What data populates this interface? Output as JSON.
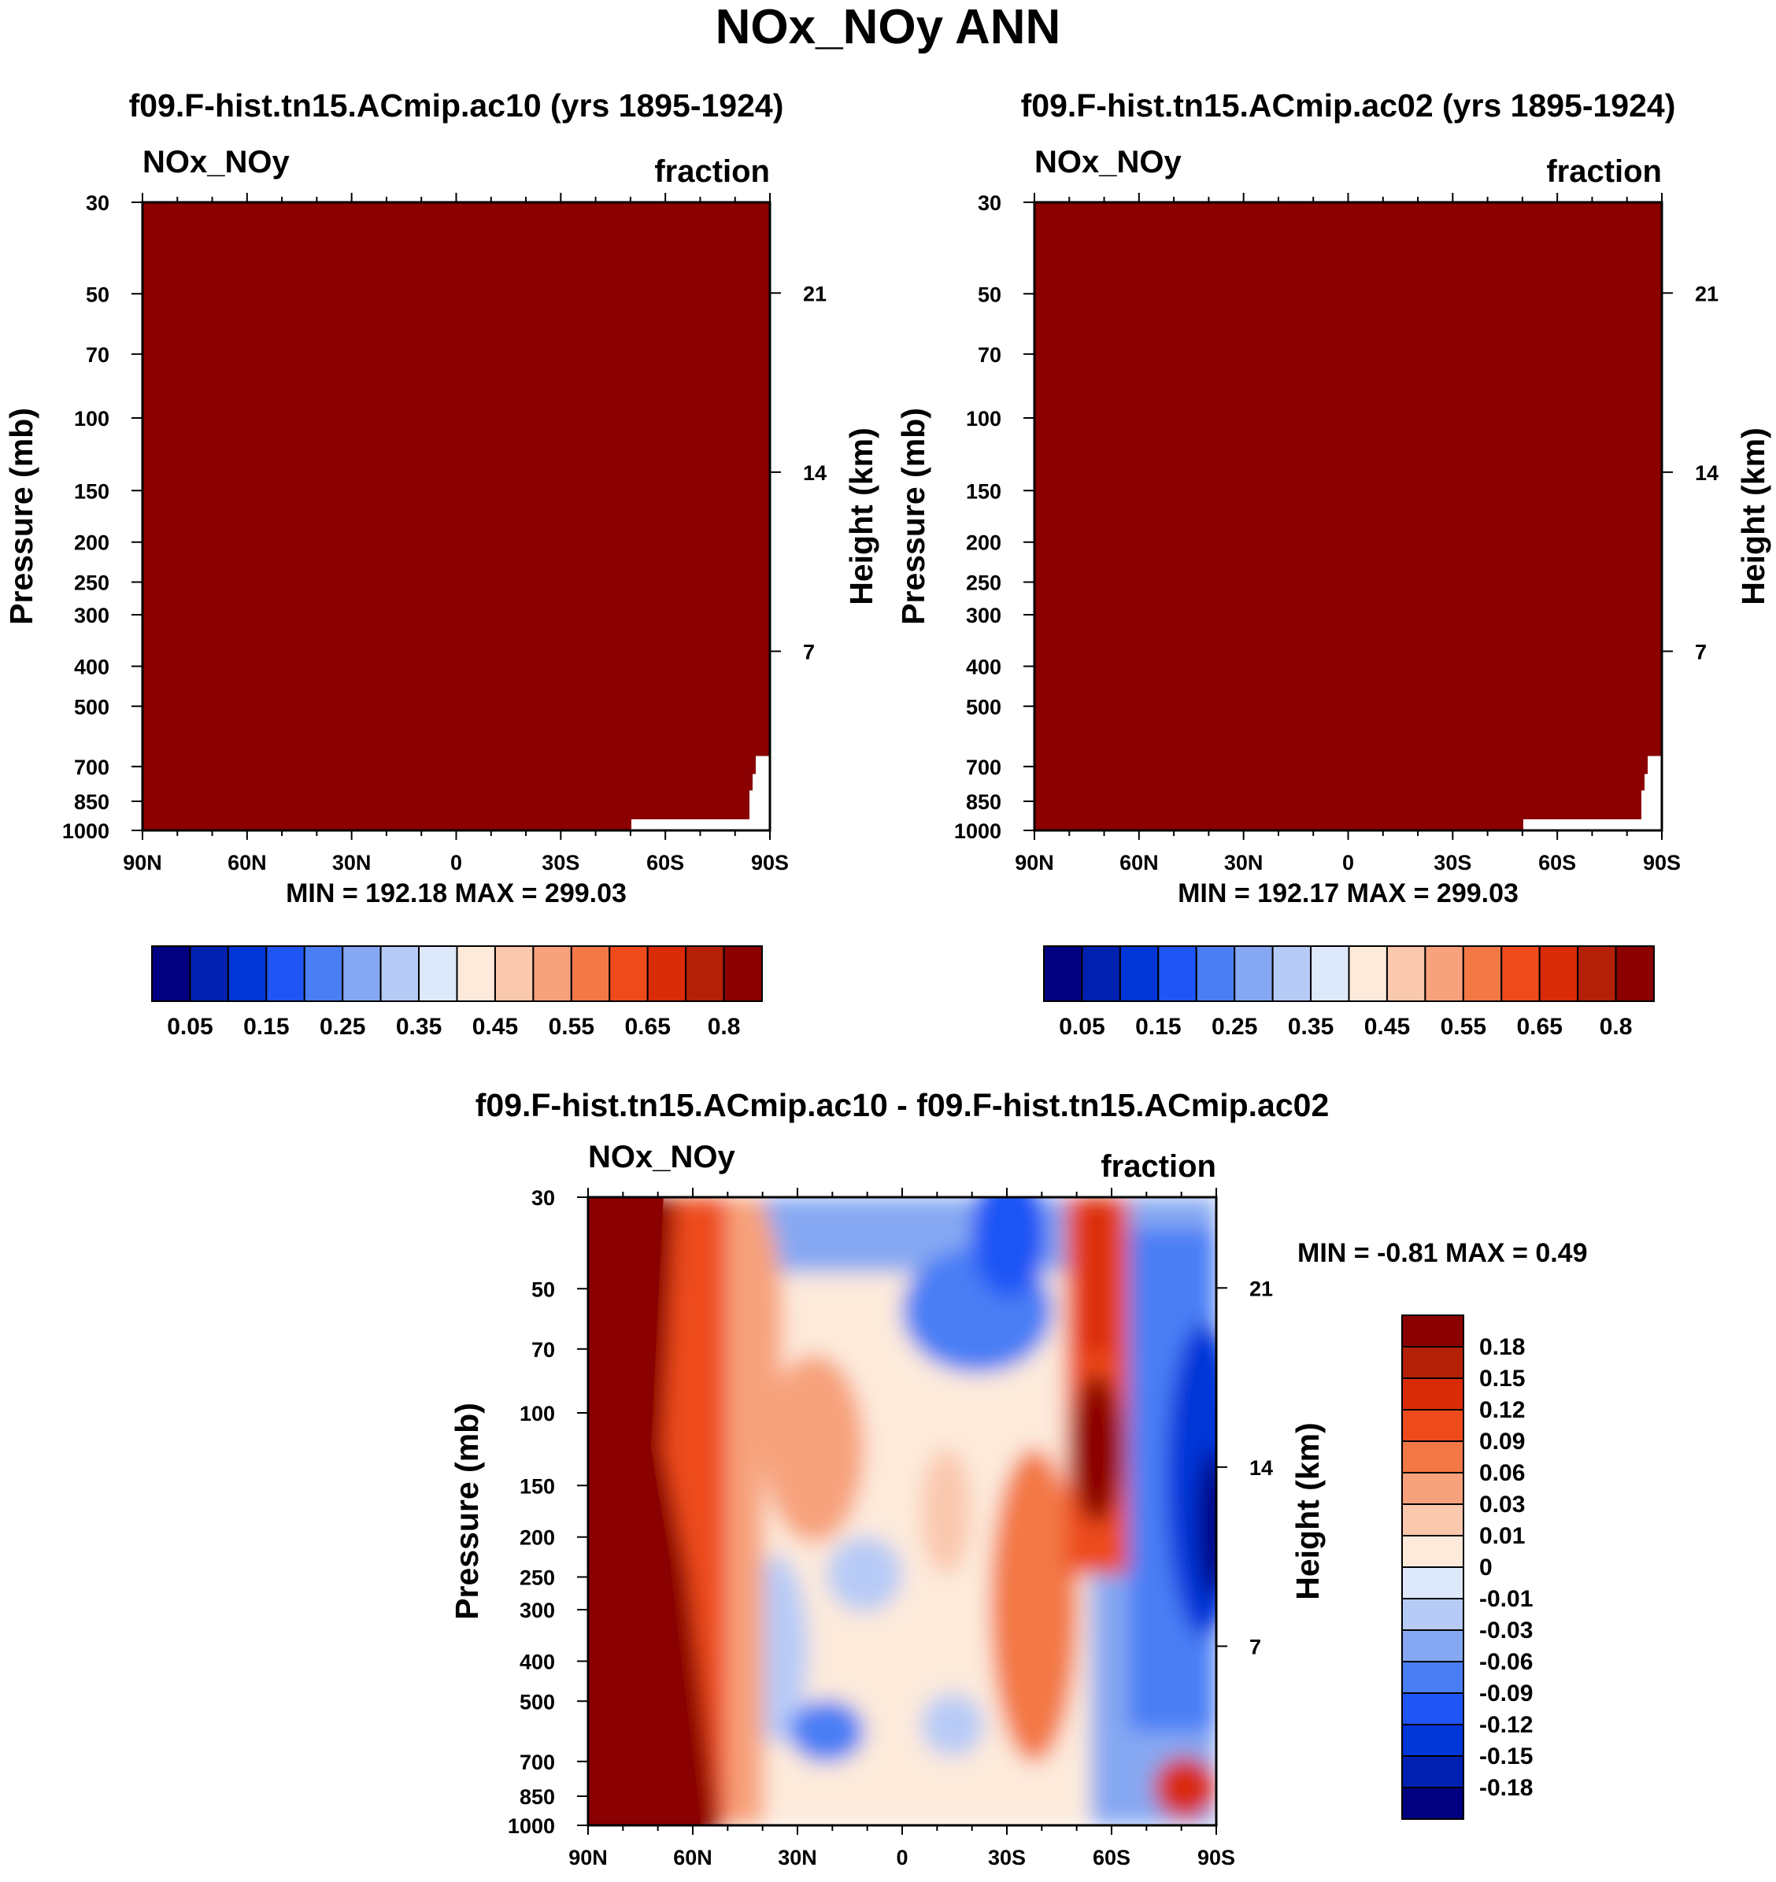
{
  "title": "NOx_NOy ANN",
  "colors": {
    "panel_fill": "#8b0000",
    "frame": "#000000",
    "levels_abs": [
      "#000080",
      "#0020b0",
      "#0035d8",
      "#1f55f5",
      "#4a7ef5",
      "#86a8f2",
      "#b7cbf7",
      "#dde9fb",
      "#fdeadb",
      "#fac8ad",
      "#f7a27c",
      "#f37845",
      "#ee4b1c",
      "#d92b08",
      "#b22107",
      "#8b0000"
    ],
    "levels_diff": [
      "#000080",
      "#0020b0",
      "#0035d8",
      "#1f55f5",
      "#4a7ef5",
      "#86a8f2",
      "#b7cbf7",
      "#dde9fb",
      "#fdeadb",
      "#fac8ad",
      "#f7a27c",
      "#f37845",
      "#ee4b1c",
      "#d92b08",
      "#b22107",
      "#8b0000"
    ]
  },
  "chart_data": [
    {
      "type": "heatmap",
      "title": "f09.F-hist.tn15.ACmip.ac10 (yrs 1895-1924)",
      "left_label": "NOx_NOy",
      "right_label": "fraction",
      "xlabel": "",
      "ylabel": "Pressure (mb)",
      "y2label": "Height (km)",
      "x_ticks": [
        "90N",
        "60N",
        "30N",
        "0",
        "30S",
        "60S",
        "90S"
      ],
      "y_ticks": [
        30,
        50,
        70,
        100,
        150,
        200,
        250,
        300,
        400,
        500,
        700,
        850,
        1000
      ],
      "y2_ticks": [
        21,
        14,
        7
      ],
      "ylim": [
        1000,
        30
      ],
      "stats": "MIN = 192.18  MAX = 299.03",
      "colorbar_labels": [
        "0.05",
        "0.15",
        "0.25",
        "0.35",
        "0.45",
        "0.55",
        "0.65",
        "0.8"
      ],
      "field": "nearly uniform >= 0.8 everywhere"
    },
    {
      "type": "heatmap",
      "title": "f09.F-hist.tn15.ACmip.ac02 (yrs 1895-1924)",
      "left_label": "NOx_NOy",
      "right_label": "fraction",
      "xlabel": "",
      "ylabel": "Pressure (mb)",
      "y2label": "Height (km)",
      "x_ticks": [
        "90N",
        "60N",
        "30N",
        "0",
        "30S",
        "60S",
        "90S"
      ],
      "y_ticks": [
        30,
        50,
        70,
        100,
        150,
        200,
        250,
        300,
        400,
        500,
        700,
        850,
        1000
      ],
      "y2_ticks": [
        21,
        14,
        7
      ],
      "ylim": [
        1000,
        30
      ],
      "stats": "MIN = 192.17  MAX = 299.03",
      "colorbar_labels": [
        "0.05",
        "0.15",
        "0.25",
        "0.35",
        "0.45",
        "0.55",
        "0.65",
        "0.8"
      ],
      "field": "nearly uniform >= 0.8 everywhere"
    },
    {
      "type": "heatmap",
      "title": "f09.F-hist.tn15.ACmip.ac10 - f09.F-hist.tn15.ACmip.ac02",
      "left_label": "NOx_NOy",
      "right_label": "fraction",
      "xlabel": "",
      "ylabel": "Pressure (mb)",
      "y2label": "Height (km)",
      "x_ticks": [
        "90N",
        "60N",
        "30N",
        "0",
        "30S",
        "60S",
        "90S"
      ],
      "y_ticks": [
        30,
        50,
        70,
        100,
        150,
        200,
        250,
        300,
        400,
        500,
        700,
        850,
        1000
      ],
      "y2_ticks": [
        21,
        14,
        7
      ],
      "ylim": [
        1000,
        30
      ],
      "stats": "MIN =  -0.81  MAX =   0.49",
      "colorbar_labels": [
        "0.18",
        "0.15",
        "0.12",
        "0.09",
        "0.06",
        "0.03",
        "0.01",
        "0",
        "-0.01",
        "-0.03",
        "-0.06",
        "-0.09",
        "-0.12",
        "-0.15",
        "-0.18"
      ],
      "field": "difference field, red at high northern latitudes, blue in southern stratosphere"
    }
  ]
}
